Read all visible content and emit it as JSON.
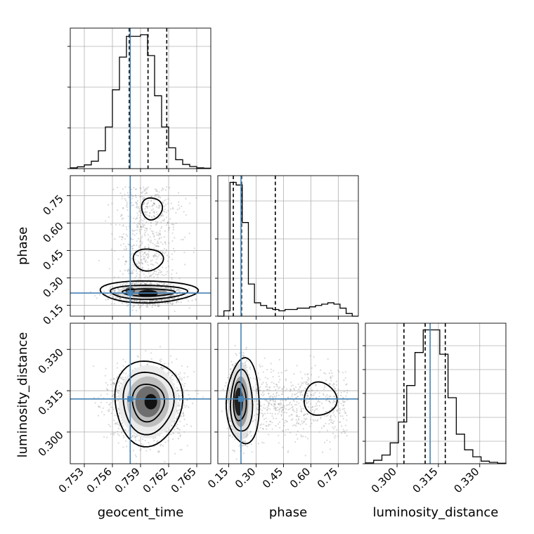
{
  "chart_data": {
    "type": "corner",
    "parameters": [
      {
        "name": "geocent_time",
        "label": "geocent_time",
        "range": [
          0.7515,
          0.7665
        ],
        "ticks": [
          0.753,
          0.756,
          0.759,
          0.762,
          0.765
        ],
        "tick_labels": [
          "0.753",
          "0.756",
          "0.759",
          "0.762",
          "0.765"
        ],
        "truth": 0.7579,
        "quantiles": [
          0.7578,
          0.7598,
          0.7618
        ],
        "hist_edges": [
          0.7515,
          0.7665
        ],
        "hist_counts": [
          0.5,
          1.2,
          2.5,
          5,
          12,
          28,
          53,
          75,
          89,
          89,
          90,
          76,
          49,
          28,
          14,
          6,
          2.8,
          1.4,
          0.5,
          0.3
        ]
      },
      {
        "name": "phase",
        "label": "phase",
        "range": [
          0.09,
          0.86
        ],
        "ticks": [
          0.15,
          0.3,
          0.45,
          0.6,
          0.75
        ],
        "tick_labels": [
          "0.15",
          "0.30",
          "0.45",
          "0.60",
          "0.75"
        ],
        "truth": 0.217,
        "quantiles": [
          0.175,
          0.22,
          0.405
        ],
        "hist_edges": [
          0.09,
          0.86
        ],
        "hist_counts": [
          0,
          4,
          100,
          98,
          70,
          24,
          10,
          8,
          6,
          5,
          4,
          5,
          5,
          6,
          6,
          7,
          8,
          9,
          10,
          9,
          6,
          2,
          0
        ]
      },
      {
        "name": "luminosity_distance",
        "label": "luminosity_distance",
        "range": [
          0.2885,
          0.3395
        ],
        "ticks": [
          0.3,
          0.315,
          0.33
        ],
        "tick_labels": [
          "0.300",
          "0.315",
          "0.330"
        ],
        "truth": 0.312,
        "quantiles": [
          0.3025,
          0.3102,
          0.3175
        ],
        "hist_edges": [
          0.2885,
          0.3395
        ],
        "hist_counts": [
          0.5,
          2,
          5,
          12,
          24,
          45,
          64,
          77,
          77,
          63,
          38,
          17,
          8,
          4,
          1.5,
          0.8,
          0.3
        ]
      }
    ],
    "title": "",
    "grid": true,
    "truth_color": "#4682b4",
    "contour_color": "#000000",
    "scatter_color": "#8c8c8c"
  }
}
